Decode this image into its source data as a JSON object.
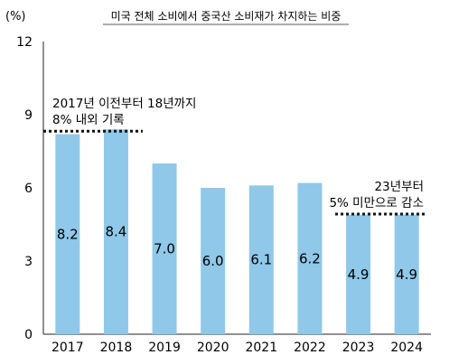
{
  "chart_data": {
    "type": "bar",
    "title": "미국 전체 소비에서 중국산 소비재가 차지하는 비중",
    "unit_label": "(%)",
    "categories": [
      "2017",
      "2018",
      "2019",
      "2020",
      "2021",
      "2022",
      "2023",
      "2024"
    ],
    "values": [
      8.2,
      8.4,
      7.0,
      6.0,
      6.1,
      6.2,
      4.9,
      4.9
    ],
    "value_labels": [
      "8.2",
      "8.4",
      "7.0",
      "6.0",
      "6.1",
      "6.2",
      "4.9",
      "4.9"
    ],
    "y_ticks": [
      "0",
      "3",
      "6",
      "9",
      "12"
    ],
    "ylim": [
      0,
      12
    ],
    "grid": false,
    "bar_color": "#8fc8e8",
    "reference_lines": [
      {
        "value": 8.4,
        "from": "2017",
        "to": "2018",
        "note_lines": [
          "2017년 이전부터 18년까지",
          "8% 내외 기록"
        ]
      },
      {
        "value": 5.0,
        "from": "2023",
        "to": "2024",
        "note_lines": [
          "23년부터",
          "5% 미만으로 감소"
        ]
      }
    ]
  }
}
